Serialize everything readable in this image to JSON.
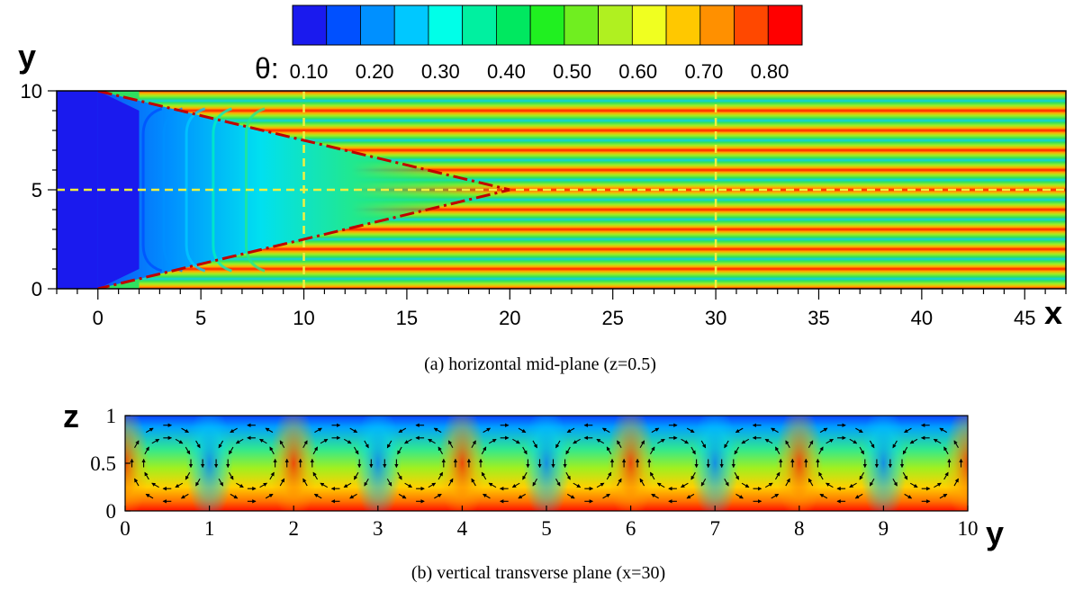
{
  "chart_data": [
    {
      "type": "heatmap",
      "caption": "(a) horizontal mid-plane (z=0.5)",
      "xlabel": "x",
      "ylabel": "y",
      "xlim": [
        -2,
        47
      ],
      "ylim": [
        0,
        10
      ],
      "xticks": [
        "0",
        "5",
        "10",
        "15",
        "20",
        "25",
        "30",
        "35",
        "40",
        "45"
      ],
      "yticks": [
        "0",
        "5",
        "10"
      ],
      "colorbar": {
        "symbol": "θ:",
        "labels": [
          "0.10",
          "0.20",
          "0.30",
          "0.40",
          "0.50",
          "0.60",
          "0.70",
          "0.80"
        ],
        "levels": [
          "#1a1aee",
          "#0050ff",
          "#0090ff",
          "#00c8ff",
          "#00ffe8",
          "#00f0a0",
          "#00e860",
          "#20f020",
          "#70ee20",
          "#b0f020",
          "#f0ff20",
          "#ffc800",
          "#ff9000",
          "#ff4800",
          "#ff0000"
        ]
      },
      "guide_lines": {
        "horizontal_y": 5,
        "vertical_x": [
          10,
          30
        ],
        "wedge": [
          [
            0,
            10
          ],
          [
            20,
            5
          ],
          [
            0,
            0
          ]
        ]
      }
    },
    {
      "type": "heatmap",
      "caption": "(b) vertical transverse plane (x=30)",
      "xlabel": "y",
      "ylabel": "z",
      "xlim": [
        0,
        10
      ],
      "ylim": [
        0,
        1
      ],
      "xticks": [
        "0",
        "1",
        "2",
        "3",
        "4",
        "5",
        "6",
        "7",
        "8",
        "9",
        "10"
      ],
      "yticks": [
        "0",
        "0.5",
        "1"
      ],
      "roll_cells": 10
    }
  ]
}
